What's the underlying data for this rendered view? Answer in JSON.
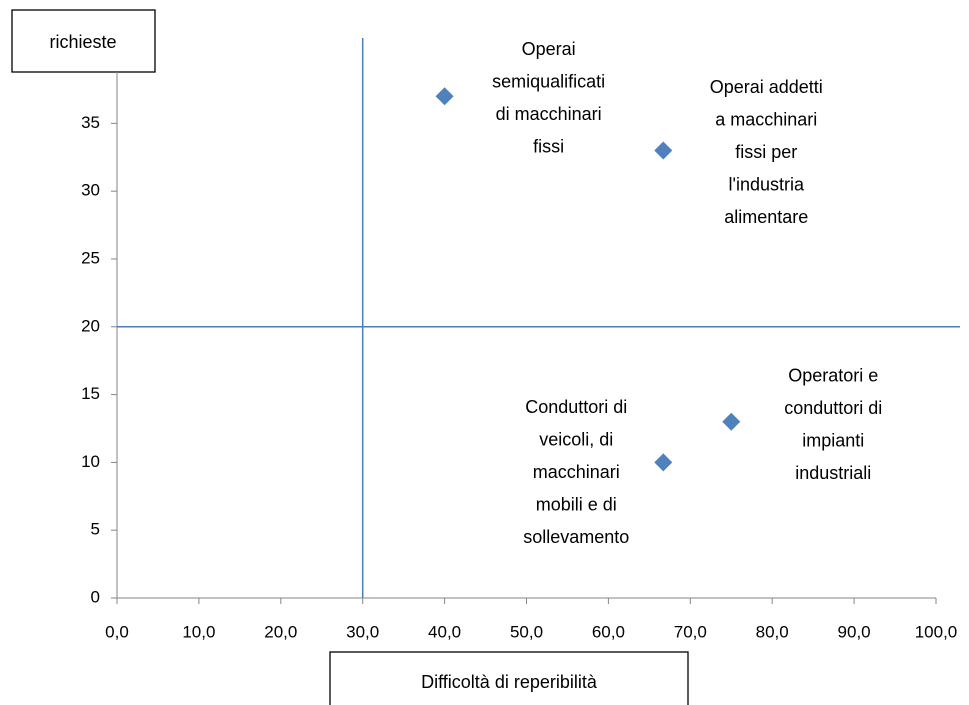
{
  "chart_data": {
    "type": "scatter",
    "x_label": "Difficoltà di reperibilità",
    "y_label": "richieste",
    "x": [
      40,
      66.7,
      66.7,
      75
    ],
    "values": [
      37,
      33,
      10,
      13
    ],
    "point_labels": [
      [
        "Operai",
        "semiqualificati",
        "di macchinari",
        "fissi"
      ],
      [
        "Operai addetti",
        "a macchinari",
        "fissi per",
        "l'industria",
        "alimentare"
      ],
      [
        "Conduttori di",
        "veicoli, di",
        "macchinari",
        "mobili e di",
        "sollevamento"
      ],
      [
        "Operatori e",
        "conduttori di",
        "impianti",
        "industriali"
      ]
    ],
    "color": "#4f81bd",
    "reference_lines": {
      "x": 30,
      "y": 20,
      "color": "#4a7ebb"
    },
    "xlim": [
      0,
      100
    ],
    "ylim": [
      0,
      41
    ],
    "xticks": [
      {
        "value": 0,
        "label": "0,0"
      },
      {
        "value": 10,
        "label": "10,0"
      },
      {
        "value": 20,
        "label": "20,0"
      },
      {
        "value": 30,
        "label": "30,0"
      },
      {
        "value": 40,
        "label": "40,0"
      },
      {
        "value": 50,
        "label": "50,0"
      },
      {
        "value": 60,
        "label": "60,0"
      },
      {
        "value": 70,
        "label": "70,0"
      },
      {
        "value": 80,
        "label": "80,0"
      },
      {
        "value": 90,
        "label": "90,0"
      },
      {
        "value": 100,
        "label": "100,0"
      }
    ],
    "yticks": [
      0,
      5,
      10,
      15,
      20,
      25,
      30,
      35
    ]
  }
}
